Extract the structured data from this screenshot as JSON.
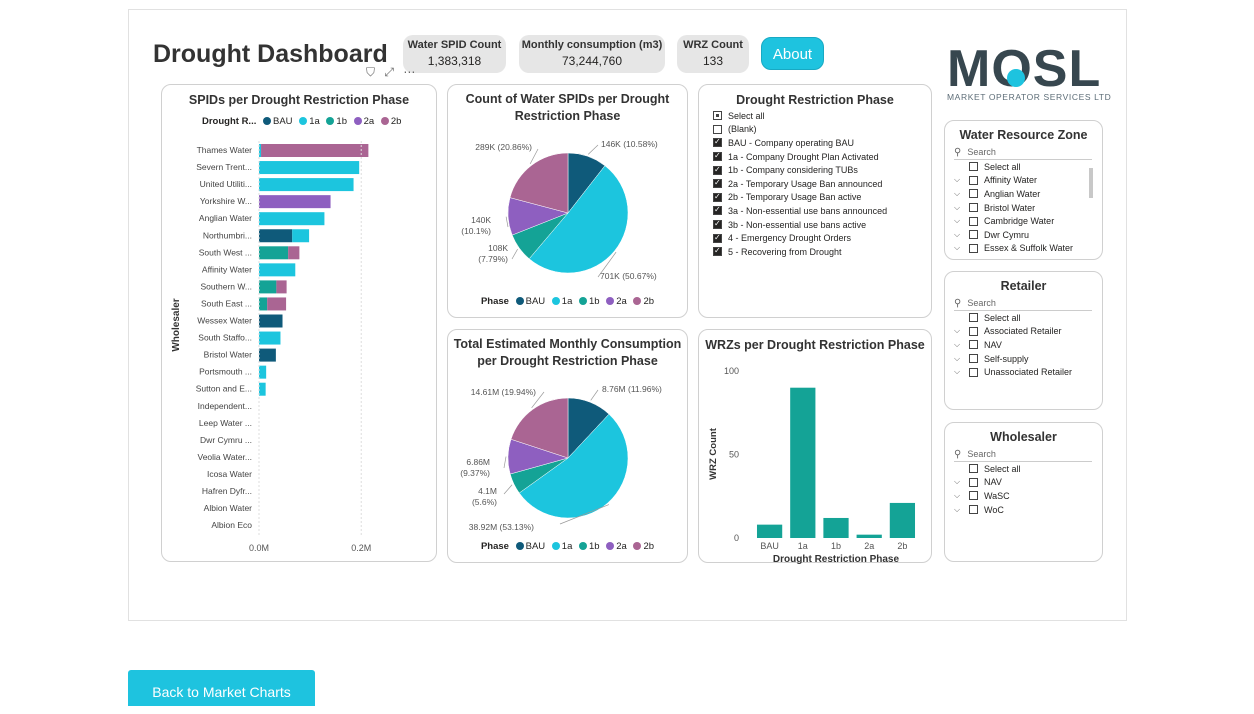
{
  "dashboard": {
    "title": "Drought Dashboard",
    "kpis": [
      {
        "label": "Water SPID Count",
        "value": "1,383,318"
      },
      {
        "label": "Monthly consumption (m3)",
        "value": "73,244,760"
      },
      {
        "label": "WRZ Count",
        "value": "133"
      }
    ],
    "about_label": "About",
    "logo_text": "MOSL",
    "logo_subtitle": "MARKET OPERATOR SERVICES LTD"
  },
  "colors": {
    "BAU": "#0f5a7a",
    "1a": "#1cc5de",
    "1b": "#14a396",
    "2a": "#8e5fc0",
    "2b": "#aa6593"
  },
  "phase_legend": [
    "BAU",
    "1a",
    "1b",
    "2a",
    "2b"
  ],
  "bar_panel": {
    "title": "SPIDs per Drought Restriction Phase",
    "legend_label": "Drought R...",
    "y_axis_label": "Wholesaler",
    "chart_data": {
      "type": "bar",
      "orientation": "horizontal",
      "stacked": true,
      "title": "SPIDs per Drought Restriction Phase",
      "ylabel": "Wholesaler",
      "x_ticks": [
        "0.0M",
        "0.2M"
      ],
      "xlim": [
        0,
        0.27
      ],
      "categories": [
        "Thames Water",
        "Severn Trent...",
        "United Utiliti...",
        "Yorkshire W...",
        "Anglian Water",
        "Northumbri...",
        "South West ...",
        "Affinity Water",
        "Southern W...",
        "South East ...",
        "Wessex Water",
        "South Staffo...",
        "Bristol Water",
        "Portsmouth ...",
        "Sutton and E...",
        "Independent...",
        "Leep Water ...",
        "Dwr Cymru ...",
        "Veolia Water...",
        "Icosa Water",
        "Hafren Dyfr...",
        "Albion Water",
        "Albion Eco"
      ],
      "series": [
        {
          "name": "BAU",
          "values": [
            0,
            0,
            0,
            0,
            0,
            0.065,
            0,
            0,
            0,
            0,
            0.046,
            0,
            0.033,
            0,
            0,
            0,
            0,
            0,
            0,
            0,
            0,
            0,
            0
          ]
        },
        {
          "name": "1a",
          "values": [
            0.004,
            0.196,
            0.185,
            0,
            0.128,
            0.033,
            0,
            0.071,
            0,
            0,
            0,
            0.042,
            0,
            0.014,
            0.013,
            0,
            0,
            0,
            0,
            0,
            0,
            0,
            0
          ]
        },
        {
          "name": "1b",
          "values": [
            0,
            0,
            0,
            0,
            0,
            0,
            0.057,
            0,
            0.034,
            0.016,
            0,
            0,
            0,
            0,
            0,
            0,
            0,
            0,
            0,
            0,
            0,
            0,
            0
          ]
        },
        {
          "name": "2a",
          "values": [
            0,
            0,
            0,
            0.14,
            0,
            0,
            0,
            0,
            0,
            0,
            0,
            0,
            0,
            0,
            0,
            0,
            0,
            0,
            0,
            0,
            0,
            0,
            0
          ]
        },
        {
          "name": "2b",
          "values": [
            0.21,
            0,
            0,
            0,
            0,
            0,
            0.022,
            0,
            0.02,
            0.037,
            0,
            0,
            0,
            0,
            0,
            0,
            0,
            0,
            0,
            0,
            0,
            0,
            0
          ]
        }
      ]
    }
  },
  "pie_spids": {
    "title_line1": "Count of Water SPIDs per Drought",
    "title_line2": "Restriction Phase",
    "legend_label": "Phase",
    "chart_data": {
      "type": "pie",
      "title": "Count of Water SPIDs per Drought Restriction Phase",
      "labels": [
        "BAU",
        "1a",
        "1b",
        "2a",
        "2b"
      ],
      "values": [
        146,
        701,
        108,
        140,
        289
      ],
      "data_labels": [
        "146K (10.58%)",
        "701K (50.67%)",
        "108K (7.79%)",
        "140K (10.1%)",
        "289K (20.86%)"
      ]
    }
  },
  "pie_consumption": {
    "title_line1": "Total Estimated Monthly Consumption",
    "title_line2": "per Drought Restriction Phase",
    "legend_label": "Phase",
    "chart_data": {
      "type": "pie",
      "title": "Total Estimated Monthly Consumption per Drought Restriction Phase",
      "labels": [
        "BAU",
        "1a",
        "1b",
        "2a",
        "2b"
      ],
      "values": [
        8.76,
        38.92,
        4.1,
        6.86,
        14.61
      ],
      "data_labels": [
        "8.76M (11.96%)",
        "38.92M (53.13%)",
        "4.1M (5.6%)",
        "6.86M (9.37%)",
        "14.61M (19.94%)"
      ]
    }
  },
  "restriction_slicer": {
    "title": "Drought Restriction Phase",
    "items": [
      {
        "label": "Select all",
        "state": "partial"
      },
      {
        "label": "(Blank)",
        "state": "unchecked"
      },
      {
        "label": "BAU - Company operating BAU",
        "state": "checked"
      },
      {
        "label": "1a - Company Drought Plan Activated",
        "state": "checked"
      },
      {
        "label": "1b - Company considering TUBs",
        "state": "checked"
      },
      {
        "label": "2a - Temporary Usage Ban announced",
        "state": "checked"
      },
      {
        "label": "2b - Temporary Usage Ban active",
        "state": "checked"
      },
      {
        "label": "3a - Non-essential use bans announced",
        "state": "checked"
      },
      {
        "label": "3b - Non-essential use bans active",
        "state": "checked"
      },
      {
        "label": "4 - Emergency Drought Orders",
        "state": "checked"
      },
      {
        "label": "5 - Recovering from Drought",
        "state": "checked"
      }
    ]
  },
  "wrz_bar": {
    "title": "WRZs per Drought Restriction Phase",
    "chart_data": {
      "type": "bar",
      "title": "WRZs per Drought Restriction Phase",
      "xlabel": "Drought Restriction Phase",
      "ylabel": "WRZ Count",
      "categories": [
        "BAU",
        "1a",
        "1b",
        "2a",
        "2b"
      ],
      "values": [
        8,
        90,
        12,
        2,
        21
      ],
      "ylim": [
        0,
        100
      ],
      "y_ticks": [
        "0",
        "50",
        "100"
      ]
    }
  },
  "filters": {
    "wrz": {
      "title": "Water Resource Zone",
      "search_placeholder": "Search",
      "items": [
        "Select all",
        "Affinity Water",
        "Anglian Water",
        "Bristol Water",
        "Cambridge Water",
        "Dwr Cymru",
        "Essex & Suffolk Water"
      ]
    },
    "retailer": {
      "title": "Retailer",
      "search_placeholder": "Search",
      "items": [
        "Select all",
        "Associated Retailer",
        "NAV",
        "Self-supply",
        "Unassociated Retailer"
      ]
    },
    "wholesaler": {
      "title": "Wholesaler",
      "search_placeholder": "Search",
      "items": [
        "Select all",
        "NAV",
        "WaSC",
        "WoC"
      ]
    }
  },
  "back_button": "Back to Market Charts"
}
